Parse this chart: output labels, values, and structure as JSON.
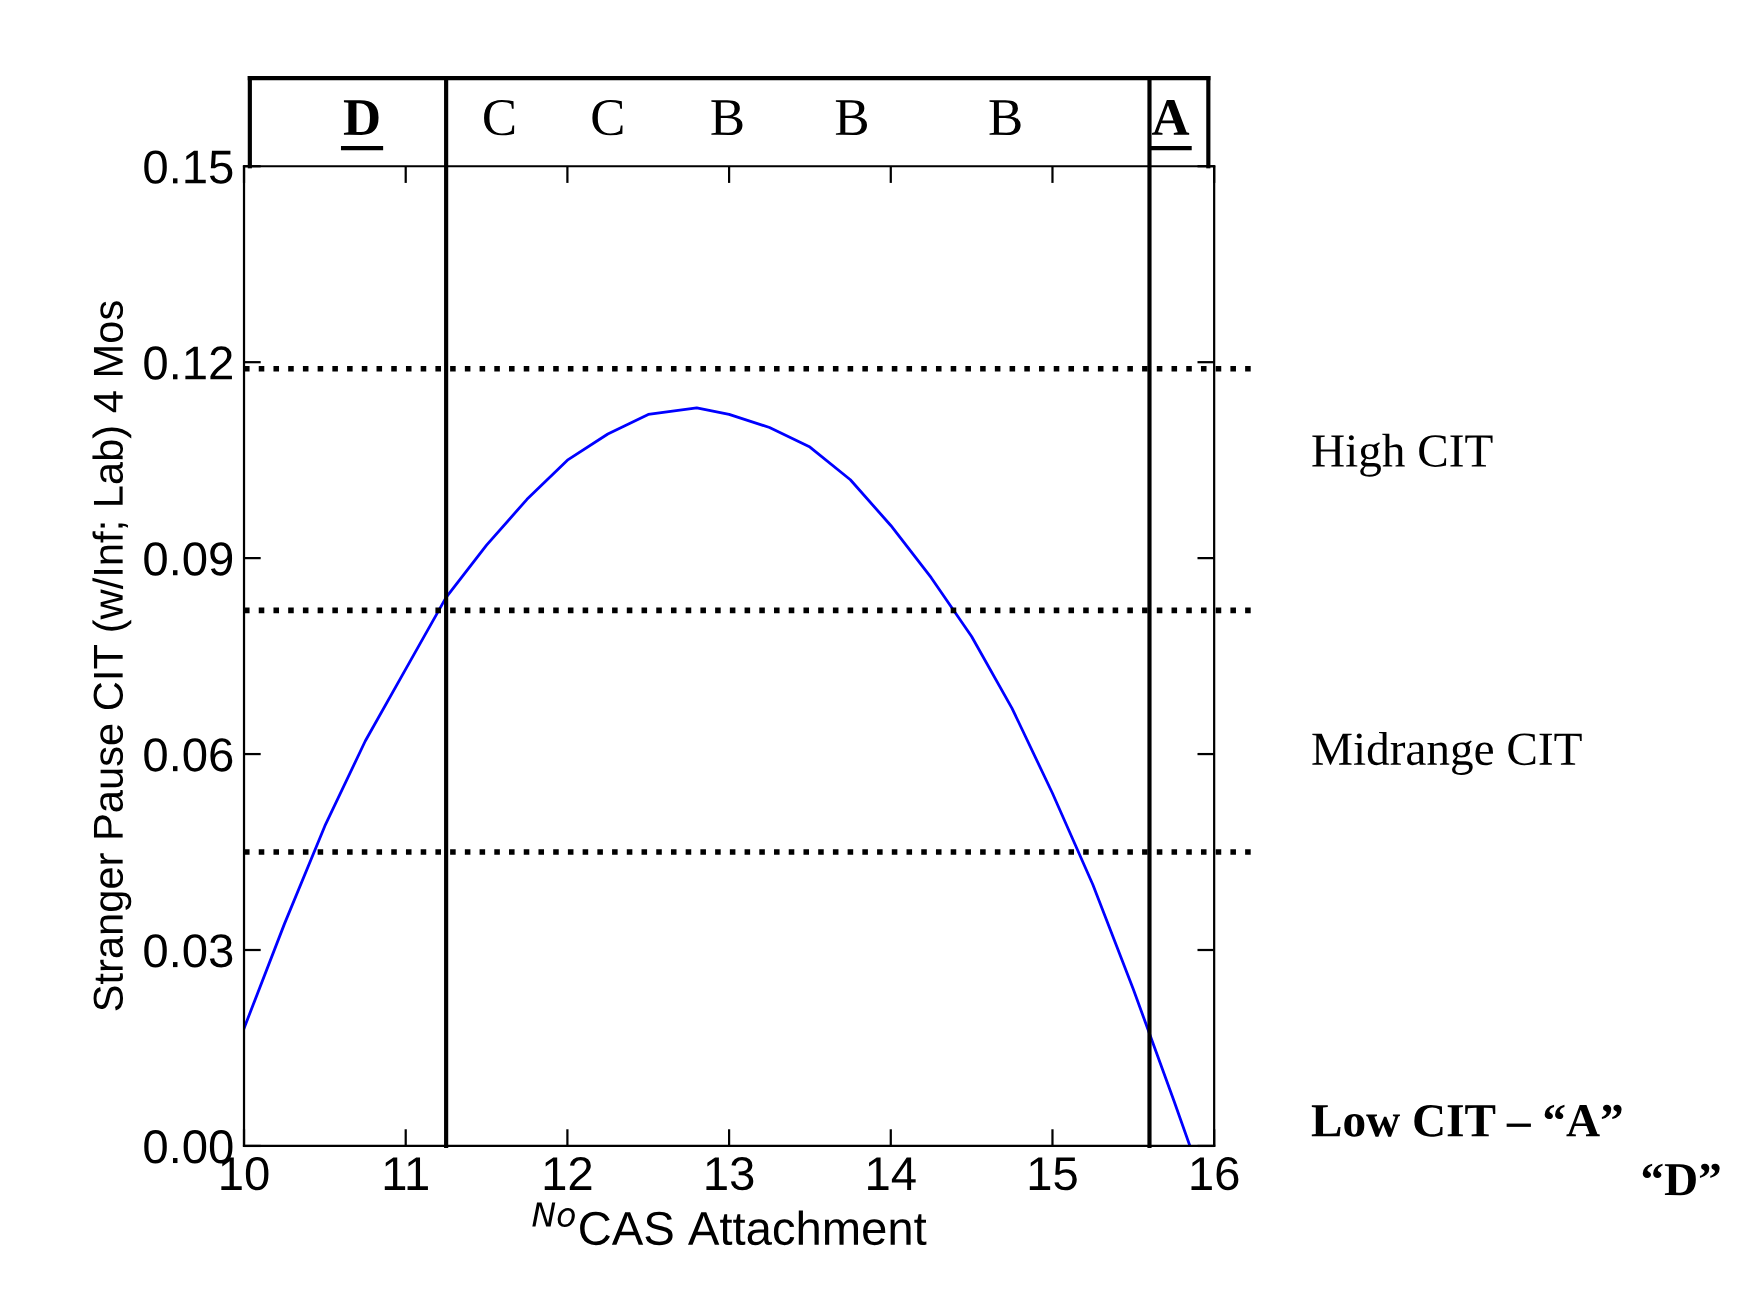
{
  "chart_data": {
    "type": "line",
    "xlabel": "$^{No}$CAS Attachment",
    "ylabel": "Stranger Pause CIT (w/Inf; Lab) 4 Mos",
    "series": [
      {
        "color": "#0000ff",
        "x": [
          10,
          10.25,
          10.5,
          10.75,
          11,
          11.25,
          11.5,
          11.75,
          12,
          12.25,
          12.5,
          12.8,
          13,
          13.25,
          13.5,
          13.75,
          14,
          14.25,
          14.5,
          14.75,
          15,
          15.25,
          15.5,
          15.75,
          15.85
        ],
        "values": [
          0.018,
          0.034,
          0.049,
          0.062,
          0.073,
          0.084,
          0.092,
          0.099,
          0.105,
          0.109,
          0.112,
          0.113,
          0.112,
          0.11,
          0.107,
          0.102,
          0.095,
          0.087,
          0.078,
          0.067,
          0.054,
          0.04,
          0.024,
          0.007,
          0.0
        ]
      }
    ],
    "xlim": [
      10,
      16
    ],
    "xticks": [
      10,
      11,
      12,
      13,
      14,
      15,
      16
    ],
    "ylim": [
      0,
      0.15
    ],
    "yticks": [
      {
        "value": 0,
        "label": "0.00"
      },
      {
        "value": 0.03,
        "label": "0.03"
      },
      {
        "value": 0.06,
        "label": "0.06"
      },
      {
        "value": 0.09,
        "label": "0.09"
      },
      {
        "value": 0.12,
        "label": "0.12"
      },
      {
        "value": 0.15,
        "label": "0.15"
      }
    ],
    "ref_lines": [
      {
        "axis": "y",
        "value": 0.119,
        "color": "#000000",
        "line_style": "dotted"
      },
      {
        "axis": "y",
        "value": 0.082,
        "color": "#000000",
        "line_style": "dotted"
      },
      {
        "axis": "y",
        "value": 0.045,
        "color": "#000000",
        "line_style": "dotted"
      },
      {
        "axis": "x",
        "value": 11.25,
        "color": "#000000",
        "line_style": "solid"
      },
      {
        "axis": "x",
        "value": 15.6,
        "color": "#000000",
        "line_style": "solid"
      }
    ],
    "annotations": [
      "D",
      "C",
      "C",
      "B",
      "B",
      "B",
      "A",
      "High CIT",
      "Midrange CIT",
      "Low CIT – “A”",
      "“D”"
    ],
    "grid": false,
    "legend": false,
    "marker": "none",
    "line_style": "solid"
  }
}
